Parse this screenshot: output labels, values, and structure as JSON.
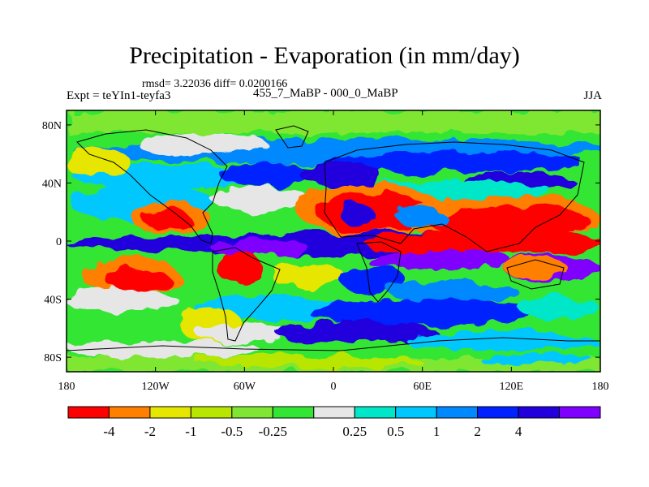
{
  "header": {
    "title": "Precipitation - Evaporation (in mm/day)",
    "stats": "rmsd= 3.22036 diff= 0.0200166",
    "experiment": "Expt = teYIn1-teyfa3",
    "subtitle": "455_7_MaBP - 000_0_MaBP",
    "season": "JJA"
  },
  "map": {
    "y_ticks": [
      {
        "lat": 80,
        "label": "80N"
      },
      {
        "lat": 40,
        "label": "40N"
      },
      {
        "lat": 0,
        "label": "0"
      },
      {
        "lat": -40,
        "label": "40S"
      },
      {
        "lat": -80,
        "label": "80S"
      }
    ],
    "x_ticks": [
      {
        "lon": -180,
        "label": "180"
      },
      {
        "lon": -120,
        "label": "120W"
      },
      {
        "lon": -60,
        "label": "60W"
      },
      {
        "lon": 0,
        "label": "0"
      },
      {
        "lon": 60,
        "label": "60E"
      },
      {
        "lon": 120,
        "label": "120E"
      },
      {
        "lon": 180,
        "label": "180"
      }
    ],
    "lon_range": [
      -180,
      180
    ],
    "lat_range": [
      -90,
      90
    ]
  },
  "colorbar": {
    "colors": [
      "#ff0000",
      "#ff7f00",
      "#e6e600",
      "#b8e600",
      "#7fe633",
      "#33e633",
      "#e6e6e6",
      "#00e6c8",
      "#00c8ff",
      "#0088ff",
      "#0022ff",
      "#2200dd",
      "#7f00ff"
    ],
    "labels": [
      "-4",
      "-2",
      "-1",
      "-0.5",
      "-0.25",
      "0.25",
      "0.5",
      "1",
      "2",
      "4"
    ]
  }
}
